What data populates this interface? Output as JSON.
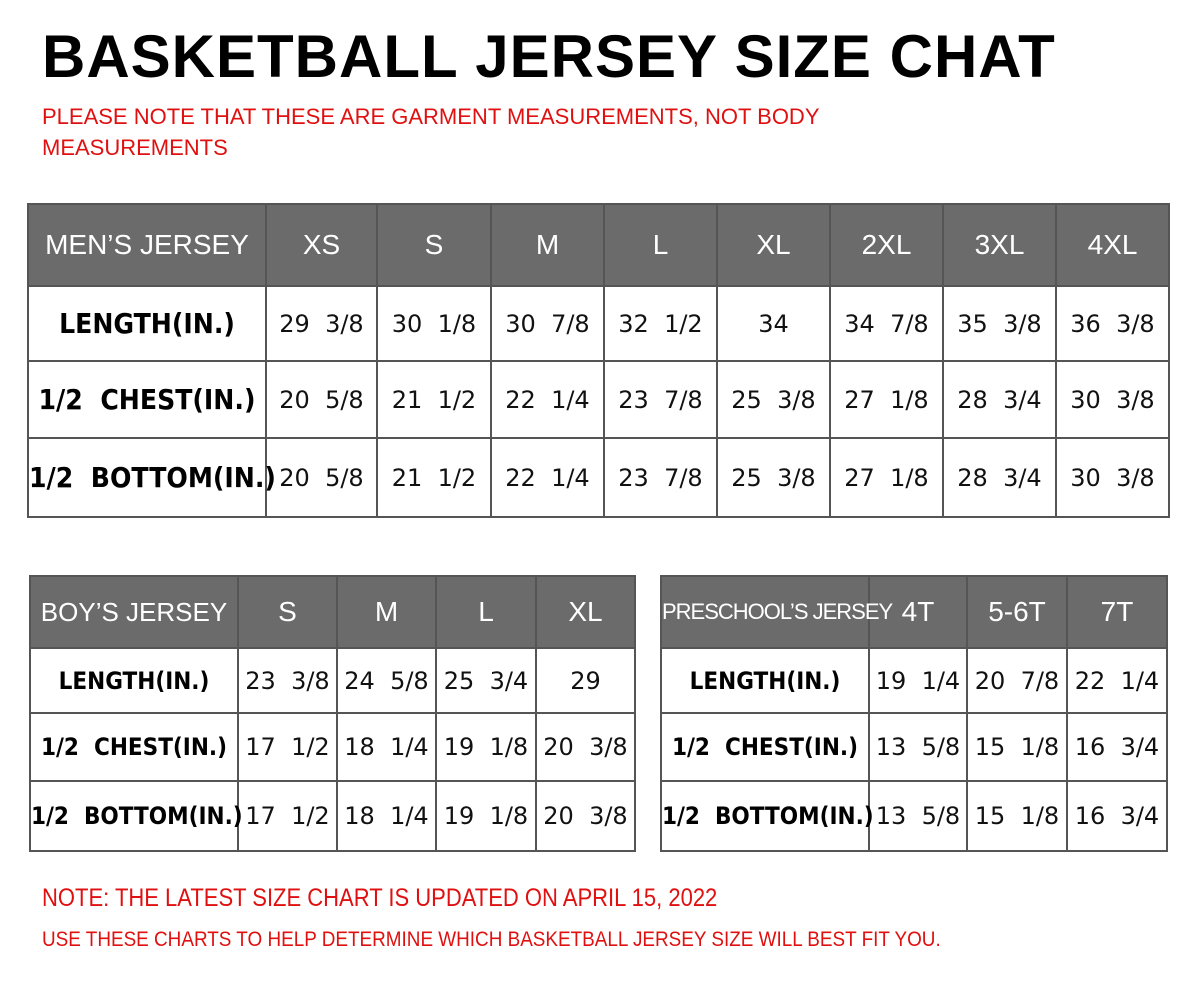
{
  "title": "BASKETBALL JERSEY SIZE CHAT",
  "notice": [
    "PLEASE NOTE THAT THESE ARE GARMENT MEASUREMENTS, NOT BODY",
    "MEASUREMENTS"
  ],
  "mens": {
    "header": "MEN’S JERSEY",
    "sizes": [
      "XS",
      "S",
      "M",
      "L",
      "XL",
      "2XL",
      "3XL",
      "4XL"
    ],
    "rows": [
      {
        "label": "LENGTH(IN.)",
        "values": [
          "29  3/8",
          "30  1/8",
          "30  7/8",
          "32  1/2",
          "34",
          "34  7/8",
          "35  3/8",
          "36  3/8"
        ]
      },
      {
        "label": "1/2  CHEST(IN.)",
        "values": [
          "20  5/8",
          "21  1/2",
          "22  1/4",
          "23  7/8",
          "25  3/8",
          "27  1/8",
          "28  3/4",
          "30  3/8"
        ]
      },
      {
        "label": "1/2  BOTTOM(IN.)",
        "values": [
          "20  5/8",
          "21  1/2",
          "22  1/4",
          "23  7/8",
          "25  3/8",
          "27  1/8",
          "28  3/4",
          "30  3/8"
        ]
      }
    ]
  },
  "boys": {
    "header": "BOY’S JERSEY",
    "sizes": [
      "S",
      "M",
      "L",
      "XL"
    ],
    "rows": [
      {
        "label": "LENGTH(IN.)",
        "values": [
          "23  3/8",
          "24  5/8",
          "25  3/4",
          "29"
        ]
      },
      {
        "label": "1/2  CHEST(IN.)",
        "values": [
          "17  1/2",
          "18  1/4",
          "19  1/8",
          "20  3/8"
        ]
      },
      {
        "label": "1/2  BOTTOM(IN.)",
        "values": [
          "17  1/2",
          "18  1/4",
          "19  1/8",
          "20  3/8"
        ]
      }
    ]
  },
  "preschool": {
    "header": "PRESCHOOL’S JERSEY",
    "sizes": [
      "4T",
      "5-6T",
      "7T"
    ],
    "rows": [
      {
        "label": "LENGTH(IN.)",
        "values": [
          "19  1/4",
          "20  7/8",
          "22  1/4"
        ]
      },
      {
        "label": "1/2  CHEST(IN.)",
        "values": [
          "13  5/8",
          "15  1/8",
          "16  3/4"
        ]
      },
      {
        "label": "1/2  BOTTOM(IN.)",
        "values": [
          "13  5/8",
          "15  1/8",
          "16  3/4"
        ]
      }
    ]
  },
  "footer": [
    "NOTE: THE LATEST SIZE CHART IS UPDATED ON APRIL 15, 2022",
    "USE THESE CHARTS TO HELP DETERMINE WHICH  BASKETBALL JERSEY  SIZE WILL BEST FIT YOU."
  ],
  "colors": {
    "header_bg": "#6b6b6b",
    "note": "#e01010"
  }
}
